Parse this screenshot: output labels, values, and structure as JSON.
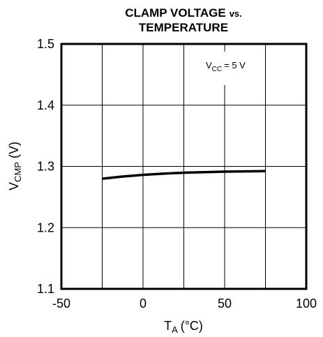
{
  "chart_data": {
    "type": "line",
    "title_line1_main": "CLAMP VOLTAGE",
    "title_line1_suffix": "vs.",
    "title_line2": "TEMPERATURE",
    "xlabel_main": "T",
    "xlabel_sub": "A",
    "xlabel_unit": "(°C)",
    "ylabel_main": "V",
    "ylabel_sub": "CMP",
    "ylabel_unit": "(V)",
    "annotation_main": "V",
    "annotation_sub": "CC",
    "annotation_value": "= 5 V",
    "xlim": [
      -50,
      100
    ],
    "ylim": [
      1.1,
      1.5
    ],
    "x_ticks": [
      -50,
      0,
      50,
      100
    ],
    "x_tick_labels": [
      "-50",
      "0",
      "50",
      "100"
    ],
    "y_ticks": [
      1.1,
      1.2,
      1.3,
      1.4,
      1.5
    ],
    "y_tick_labels": [
      "1.1",
      "1.2",
      "1.3",
      "1.4",
      "1.5"
    ],
    "x_grid": [
      -25,
      0,
      25,
      50,
      75
    ],
    "y_grid": [
      1.2,
      1.3,
      1.4
    ],
    "grid": true,
    "series": [
      {
        "x": [
          -25,
          -12.5,
          0,
          12.5,
          25,
          37.5,
          50,
          62.5,
          75
        ],
        "y": [
          1.28,
          1.2835,
          1.2862,
          1.2882,
          1.2897,
          1.2907,
          1.2914,
          1.2919,
          1.2922
        ]
      }
    ]
  }
}
